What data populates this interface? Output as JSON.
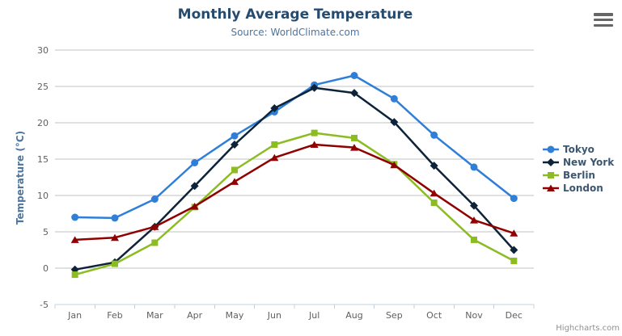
{
  "chart": {
    "title": "Monthly Average Temperature",
    "subtitle": "Source: WorldClimate.com",
    "credits": "Highcharts.com",
    "export_icon": "hamburger-icon"
  },
  "chart_data": {
    "type": "line",
    "title": "Monthly Average Temperature",
    "subtitle": "Source: WorldClimate.com",
    "categories": [
      "Jan",
      "Feb",
      "Mar",
      "Apr",
      "May",
      "Jun",
      "Jul",
      "Aug",
      "Sep",
      "Oct",
      "Nov",
      "Dec"
    ],
    "series": [
      {
        "name": "Tokyo",
        "color": "#2f7ed8",
        "marker": "circle",
        "values": [
          7.0,
          6.9,
          9.5,
          14.5,
          18.2,
          21.5,
          25.2,
          26.5,
          23.3,
          18.3,
          13.9,
          9.6
        ]
      },
      {
        "name": "New York",
        "color": "#0d233a",
        "marker": "diamond",
        "values": [
          -0.2,
          0.8,
          5.7,
          11.3,
          17.0,
          22.0,
          24.8,
          24.1,
          20.1,
          14.1,
          8.6,
          2.5
        ]
      },
      {
        "name": "Berlin",
        "color": "#8bbc21",
        "marker": "square",
        "values": [
          -0.9,
          0.6,
          3.5,
          8.4,
          13.5,
          17.0,
          18.6,
          17.9,
          14.3,
          9.0,
          3.9,
          1.0
        ]
      },
      {
        "name": "London",
        "color": "#910000",
        "marker": "triangle",
        "values": [
          3.9,
          4.2,
          5.7,
          8.5,
          11.9,
          15.2,
          17.0,
          16.6,
          14.2,
          10.3,
          6.6,
          4.8
        ]
      }
    ],
    "xlabel": "",
    "ylabel": "Temperature (°C)",
    "ylim": [
      -5,
      30
    ],
    "yticks": [
      -5,
      0,
      5,
      10,
      15,
      20,
      25,
      30
    ],
    "grid": true,
    "legend_position": "right",
    "style_colors": {
      "title": "#274b6d",
      "subtitle": "#4d759e",
      "axis_title": "#4d759e",
      "tick_label": "#606060",
      "gridline": "#c0c0c0",
      "axis_line": "#c0d0e0",
      "legend_text": "#3E576F",
      "credits": "#909090"
    }
  }
}
